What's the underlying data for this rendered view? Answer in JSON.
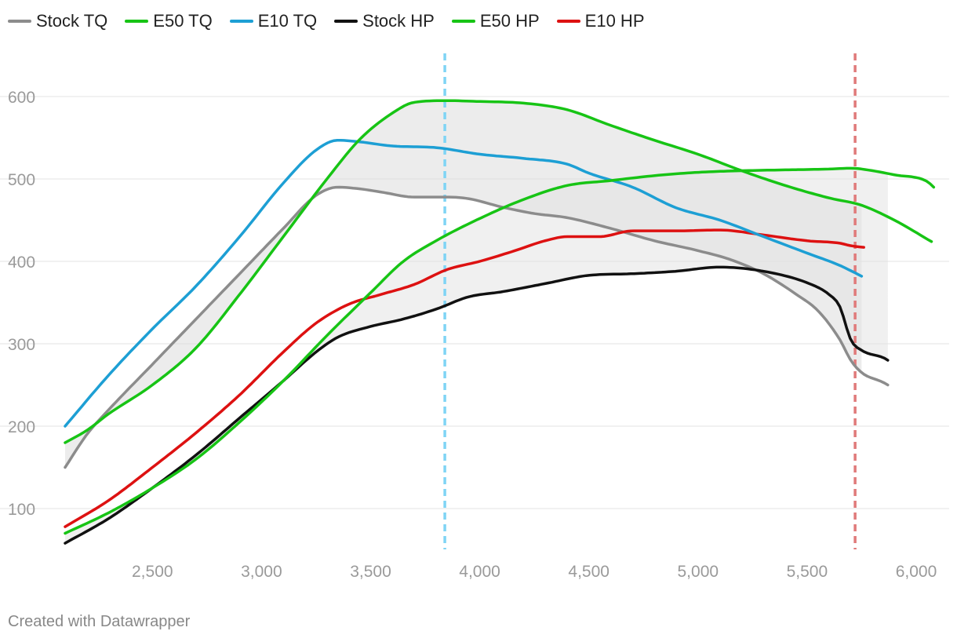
{
  "chart_data": {
    "type": "line",
    "title": "",
    "xlabel": "",
    "ylabel": "",
    "xlim": [
      2100,
      6100
    ],
    "ylim": [
      45,
      630
    ],
    "x_ticks": [
      2500,
      3000,
      3500,
      4000,
      4500,
      5000,
      5500,
      6000
    ],
    "x_tick_labels": [
      "2,500",
      "3,000",
      "3,500",
      "4,000",
      "4,500",
      "5,000",
      "5,500",
      "6,000"
    ],
    "y_ticks": [
      100,
      200,
      300,
      400,
      500,
      600
    ],
    "y_tick_labels": [
      "100",
      "200",
      "300",
      "400",
      "500",
      "600"
    ],
    "grid": true,
    "legend_position": "top-left",
    "reference_lines": [
      {
        "name": "blue-rpm-marker",
        "x": 3840,
        "color": "#7fd4f5"
      },
      {
        "name": "red-rpm-marker",
        "x": 5720,
        "color": "#e07a7a"
      }
    ],
    "series": [
      {
        "name": "Stock TQ",
        "color": "#8c8c8c",
        "x": [
          2100,
          2200,
          2300,
          2500,
          2700,
          2900,
          3100,
          3250,
          3350,
          3450,
          3550,
          3700,
          3850,
          3950,
          4100,
          4250,
          4400,
          4600,
          4800,
          5000,
          5150,
          5300,
          5450,
          5550,
          5650,
          5700,
          5750,
          5850,
          5870
        ],
        "y": [
          150,
          190,
          220,
          275,
          330,
          385,
          440,
          480,
          490,
          488,
          484,
          478,
          478,
          476,
          466,
          458,
          453,
          440,
          425,
          413,
          402,
          385,
          360,
          340,
          305,
          280,
          265,
          253,
          250
        ]
      },
      {
        "name": "E50 TQ",
        "color": "#17c415",
        "x": [
          2100,
          2200,
          2300,
          2500,
          2700,
          2900,
          3100,
          3300,
          3450,
          3600,
          3700,
          3850,
          4000,
          4200,
          4400,
          4600,
          4800,
          5000,
          5200,
          5400,
          5600,
          5750,
          5900,
          6000,
          6050,
          6070
        ],
        "y": [
          180,
          195,
          215,
          250,
          295,
          360,
          430,
          500,
          548,
          580,
          593,
          595,
          594,
          592,
          584,
          565,
          547,
          530,
          510,
          492,
          477,
          468,
          450,
          435,
          427,
          424
        ]
      },
      {
        "name": "E10 TQ",
        "color": "#1d9fd4",
        "x": [
          2100,
          2300,
          2500,
          2700,
          2900,
          3100,
          3250,
          3350,
          3450,
          3600,
          3800,
          4000,
          4200,
          4400,
          4500,
          4700,
          4900,
          5100,
          5300,
          5500,
          5650,
          5750
        ],
        "y": [
          200,
          262,
          318,
          370,
          430,
          495,
          535,
          547,
          545,
          540,
          538,
          530,
          525,
          518,
          507,
          490,
          465,
          450,
          430,
          410,
          395,
          382
        ]
      },
      {
        "name": "Stock HP",
        "color": "#111111",
        "x": [
          2100,
          2300,
          2500,
          2700,
          2900,
          3100,
          3250,
          3350,
          3500,
          3650,
          3800,
          3950,
          4100,
          4300,
          4500,
          4700,
          4900,
          5100,
          5300,
          5500,
          5600,
          5650,
          5700,
          5750,
          5850,
          5870
        ],
        "y": [
          58,
          88,
          125,
          165,
          210,
          255,
          290,
          308,
          321,
          330,
          342,
          357,
          363,
          373,
          383,
          385,
          388,
          393,
          388,
          374,
          360,
          345,
          305,
          292,
          283,
          280
        ]
      },
      {
        "name": "E50 HP",
        "color": "#17c415",
        "x": [
          2100,
          2300,
          2500,
          2700,
          2900,
          3100,
          3300,
          3500,
          3650,
          3800,
          4000,
          4200,
          4400,
          4600,
          4800,
          5000,
          5200,
          5400,
          5600,
          5700,
          5800,
          5900,
          6050,
          6080
        ],
        "y": [
          70,
          95,
          125,
          160,
          205,
          255,
          310,
          362,
          400,
          425,
          452,
          475,
          492,
          498,
          504,
          508,
          510,
          511,
          512,
          513,
          510,
          505,
          497,
          490
        ]
      },
      {
        "name": "E10 HP",
        "color": "#dd1111",
        "x": [
          2100,
          2300,
          2500,
          2700,
          2900,
          3100,
          3250,
          3400,
          3550,
          3700,
          3850,
          4000,
          4150,
          4300,
          4400,
          4550,
          4700,
          4900,
          5100,
          5300,
          5500,
          5650,
          5700,
          5760
        ],
        "y": [
          78,
          110,
          150,
          192,
          238,
          290,
          325,
          348,
          360,
          372,
          390,
          400,
          412,
          425,
          430,
          430,
          437,
          437,
          438,
          432,
          425,
          422,
          419,
          417
        ]
      }
    ],
    "shaded_bands": [
      {
        "name": "tq-band",
        "upper": "E50 TQ",
        "lower": "Stock TQ",
        "from_x": 2100,
        "to_x": 5750,
        "color": "#d9d9d9"
      },
      {
        "name": "hp-band",
        "upper": "E50 HP",
        "lower": "Stock HP",
        "from_x": 2100,
        "to_x": 5870,
        "color": "#e2e2e2"
      }
    ]
  },
  "footer": {
    "credit": "Created with Datawrapper"
  }
}
